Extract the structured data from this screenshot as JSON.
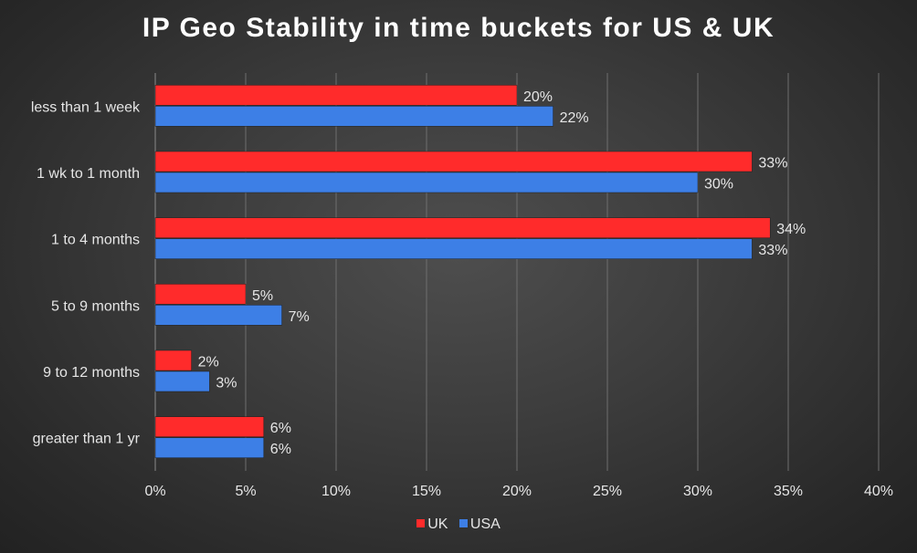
{
  "colors": {
    "uk": "#ff2b2b",
    "usa": "#3d7fe6",
    "text": "#e6e6e6",
    "grid": "#6e6e6e"
  },
  "chart_data": {
    "type": "bar",
    "orientation": "horizontal",
    "title": "IP Geo Stability in time buckets for US & UK",
    "xlabel": "",
    "ylabel": "",
    "categories": [
      "less than 1 week",
      "1 wk to 1 month",
      "1 to 4 months",
      "5 to 9 months",
      "9 to 12 months",
      "greater than 1 yr"
    ],
    "series": [
      {
        "name": "UK",
        "values": [
          20,
          33,
          34,
          5,
          2,
          6
        ],
        "labels": [
          "20%",
          "33%",
          "34%",
          "5%",
          "2%",
          "6%"
        ]
      },
      {
        "name": "USA",
        "values": [
          22,
          30,
          33,
          7,
          3,
          6
        ],
        "labels": [
          "22%",
          "30%",
          "33%",
          "7%",
          "3%",
          "6%"
        ]
      }
    ],
    "xlim": [
      0,
      40
    ],
    "xticks": [
      "0%",
      "5%",
      "10%",
      "15%",
      "20%",
      "25%",
      "30%",
      "35%",
      "40%"
    ],
    "grid": true,
    "legend_position": "bottom"
  }
}
